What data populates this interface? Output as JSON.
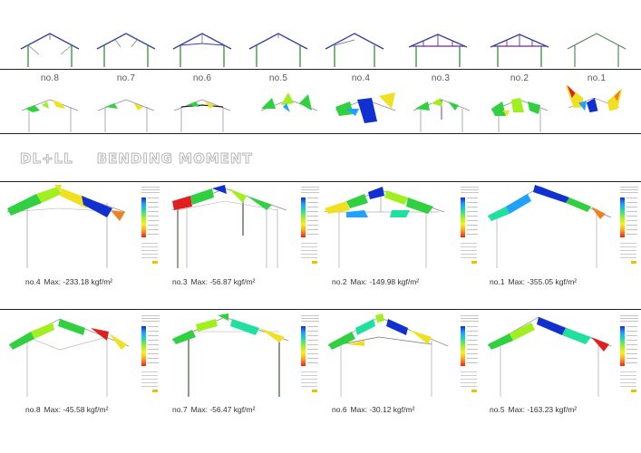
{
  "frames": {
    "labels": [
      "no.8",
      "no.7",
      "no.6",
      "no.5",
      "no.4",
      "no.3",
      "no.2",
      "no.1"
    ]
  },
  "section": {
    "title_left": "DL+LL",
    "title_right": "BENDING MOMENT"
  },
  "results": [
    {
      "label": "no.4",
      "max": "Max: -233.18 kgf/m²"
    },
    {
      "label": "no.3",
      "max": "Max: -56.87 kgf/m²"
    },
    {
      "label": "no.2",
      "max": "Max: -149.98 kgf/m²"
    },
    {
      "label": "no.1",
      "max": "Max: -355.05 kgf/m²"
    },
    {
      "label": "no.8",
      "max": "Max: -45.58 kgf/m²"
    },
    {
      "label": "no.7",
      "max": "Max: -56.47 kgf/m²"
    },
    {
      "label": "no.6",
      "max": "Max: -30.12 kgf/m²"
    },
    {
      "label": "no.5",
      "max": "Max: -163.23 kgf/m²"
    }
  ],
  "colors": {
    "truss_rafter": "#3a3fa0",
    "truss_column": "#3a8a3a",
    "moment_blue": "#1030d0",
    "moment_green": "#30d040",
    "moment_yellow": "#f0e020",
    "moment_red": "#e02020"
  }
}
